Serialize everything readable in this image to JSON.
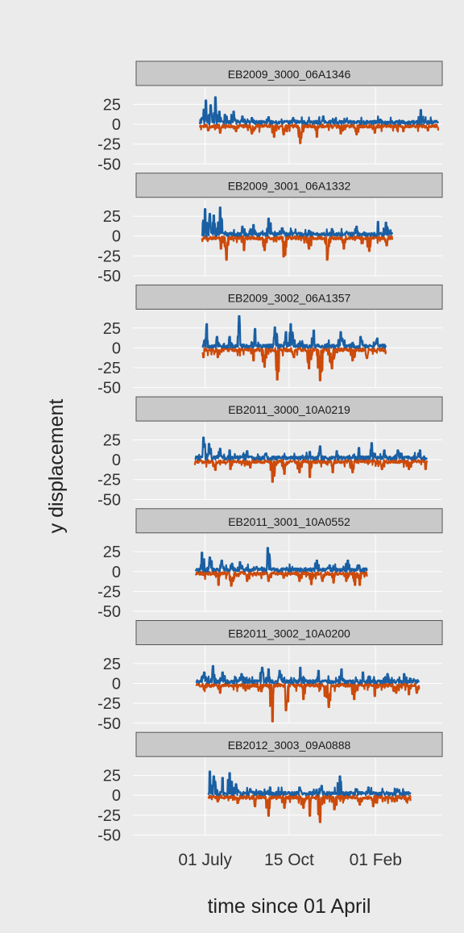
{
  "chart_data": {
    "type": "line",
    "xlabel": "time since 01 April",
    "ylabel": "y displacement",
    "x_ticks": [
      {
        "label": "01 July",
        "day": 91
      },
      {
        "label": "15 Oct",
        "day": 197
      },
      {
        "label": "01 Feb",
        "day": 306
      }
    ],
    "xlim": [
      0,
      390
    ],
    "ylim": [
      -50,
      40
    ],
    "y_ticks": [
      25,
      0,
      -25,
      -50
    ],
    "y_tick_labels": [
      "25",
      "0",
      "-25",
      "-50"
    ],
    "grid": true,
    "legend": "none",
    "colors": {
      "positive": "#1a5fa3",
      "negative": "#cc4a0a",
      "panel_bg": "#ebebeb",
      "strip_bg": "#c9c9c9",
      "grid": "#ffffff"
    },
    "panels": [
      {
        "title": "EB2009_3000_06A1346",
        "x_range": [
          84,
          385
        ],
        "positive_peaks": [
          [
            88,
            8
          ],
          [
            92,
            30
          ],
          [
            98,
            24
          ],
          [
            104,
            34
          ],
          [
            109,
            16
          ],
          [
            116,
            12
          ],
          [
            127,
            16
          ],
          [
            138,
            10
          ],
          [
            150,
            8
          ],
          [
            171,
            9
          ],
          [
            202,
            8
          ],
          [
            240,
            10
          ],
          [
            312,
            6
          ],
          [
            363,
            18
          ]
        ],
        "negative_peaks": [
          [
            95,
            -8
          ],
          [
            110,
            -11
          ],
          [
            130,
            -9
          ],
          [
            150,
            -12
          ],
          [
            178,
            -16
          ],
          [
            190,
            -13
          ],
          [
            211,
            -24
          ],
          [
            232,
            -16
          ],
          [
            262,
            -12
          ],
          [
            282,
            -13
          ],
          [
            305,
            -11
          ],
          [
            341,
            -9
          ],
          [
            372,
            -8
          ]
        ]
      },
      {
        "title": "EB2009_3001_06A1332",
        "x_range": [
          87,
          327
        ],
        "positive_peaks": [
          [
            91,
            34
          ],
          [
            97,
            28
          ],
          [
            102,
            26
          ],
          [
            110,
            36
          ],
          [
            138,
            12
          ],
          [
            152,
            14
          ],
          [
            171,
            22
          ],
          [
            188,
            10
          ],
          [
            222,
            7
          ],
          [
            251,
            9
          ],
          [
            282,
            12
          ],
          [
            309,
            18
          ],
          [
            319,
            17
          ]
        ],
        "negative_peaks": [
          [
            111,
            -16
          ],
          [
            118,
            -30
          ],
          [
            140,
            -18
          ],
          [
            166,
            -18
          ],
          [
            190,
            -26
          ],
          [
            192,
            -24
          ],
          [
            222,
            -16
          ],
          [
            245,
            -30
          ],
          [
            266,
            -16
          ],
          [
            298,
            -19
          ],
          [
            320,
            -12
          ]
        ]
      },
      {
        "title": "EB2009_3002_06A1357",
        "x_range": [
          88,
          319
        ],
        "positive_peaks": [
          [
            93,
            30
          ],
          [
            106,
            14
          ],
          [
            122,
            14
          ],
          [
            134,
            40
          ],
          [
            154,
            24
          ],
          [
            179,
            26
          ],
          [
            193,
            20
          ],
          [
            199,
            30
          ],
          [
            228,
            22
          ],
          [
            262,
            20
          ],
          [
            287,
            14
          ],
          [
            308,
            12
          ]
        ],
        "negative_peaks": [
          [
            89,
            -12
          ],
          [
            107,
            -12
          ],
          [
            152,
            -16
          ],
          [
            166,
            -24
          ],
          [
            182,
            -40
          ],
          [
            203,
            -12
          ],
          [
            222,
            -26
          ],
          [
            236,
            -41
          ],
          [
            251,
            -26
          ],
          [
            277,
            -16
          ],
          [
            295,
            -13
          ]
        ]
      },
      {
        "title": "EB2011_3000_10A0219",
        "x_range": [
          78,
          371
        ],
        "positive_peaks": [
          [
            89,
            28
          ],
          [
            96,
            20
          ],
          [
            110,
            14
          ],
          [
            122,
            12
          ],
          [
            144,
            11
          ],
          [
            168,
            8
          ],
          [
            223,
            10
          ],
          [
            236,
            17
          ],
          [
            257,
            11
          ],
          [
            285,
            15
          ],
          [
            301,
            21
          ],
          [
            317,
            12
          ],
          [
            334,
            12
          ],
          [
            362,
            12
          ]
        ],
        "negative_peaks": [
          [
            82,
            -4
          ],
          [
            104,
            -13
          ],
          [
            123,
            -12
          ],
          [
            148,
            -10
          ],
          [
            176,
            -28
          ],
          [
            191,
            -18
          ],
          [
            210,
            -16
          ],
          [
            223,
            -22
          ],
          [
            252,
            -16
          ],
          [
            277,
            -16
          ],
          [
            314,
            -12
          ],
          [
            348,
            -12
          ],
          [
            369,
            -12
          ]
        ]
      },
      {
        "title": "EB2011_3001_10A0552",
        "x_range": [
          79,
          295
        ],
        "positive_peaks": [
          [
            87,
            24
          ],
          [
            97,
            18
          ],
          [
            112,
            14
          ],
          [
            125,
            10
          ],
          [
            135,
            12
          ],
          [
            156,
            6
          ],
          [
            170,
            30
          ],
          [
            232,
            14
          ],
          [
            248,
            8
          ],
          [
            271,
            14
          ],
          [
            285,
            8
          ]
        ],
        "negative_peaks": [
          [
            108,
            -17
          ],
          [
            124,
            -18
          ],
          [
            144,
            -12
          ],
          [
            171,
            -12
          ],
          [
            190,
            -8
          ],
          [
            210,
            -12
          ],
          [
            225,
            -16
          ],
          [
            239,
            -12
          ],
          [
            253,
            -14
          ],
          [
            269,
            -12
          ],
          [
            280,
            -17
          ],
          [
            286,
            -17
          ]
        ]
      },
      {
        "title": "EB2011_3002_10A0200",
        "x_range": [
          80,
          361
        ],
        "positive_peaks": [
          [
            90,
            14
          ],
          [
            101,
            22
          ],
          [
            113,
            14
          ],
          [
            137,
            12
          ],
          [
            163,
            20
          ],
          [
            171,
            18
          ],
          [
            185,
            16
          ],
          [
            211,
            20
          ],
          [
            234,
            16
          ],
          [
            263,
            18
          ],
          [
            290,
            14
          ],
          [
            321,
            12
          ],
          [
            342,
            12
          ]
        ],
        "negative_peaks": [
          [
            85,
            -4
          ],
          [
            110,
            -12
          ],
          [
            142,
            -9
          ],
          [
            162,
            -10
          ],
          [
            176,
            -48
          ],
          [
            193,
            -34
          ],
          [
            215,
            -20
          ],
          [
            242,
            -16
          ],
          [
            247,
            -30
          ],
          [
            279,
            -20
          ],
          [
            305,
            -16
          ],
          [
            332,
            -12
          ],
          [
            348,
            -14
          ],
          [
            358,
            -12
          ]
        ]
      },
      {
        "title": "EB2012_3003_09A0888",
        "x_range": [
          95,
          350
        ],
        "positive_peaks": [
          [
            97,
            30
          ],
          [
            102,
            24
          ],
          [
            113,
            22
          ],
          [
            122,
            28
          ],
          [
            130,
            14
          ],
          [
            148,
            8
          ],
          [
            173,
            10
          ],
          [
            210,
            10
          ],
          [
            238,
            12
          ],
          [
            261,
            24
          ],
          [
            281,
            8
          ],
          [
            297,
            10
          ],
          [
            333,
            8
          ]
        ],
        "negative_peaks": [
          [
            107,
            -8
          ],
          [
            132,
            -10
          ],
          [
            154,
            -14
          ],
          [
            171,
            -26
          ],
          [
            191,
            -16
          ],
          [
            215,
            -16
          ],
          [
            223,
            -26
          ],
          [
            236,
            -34
          ],
          [
            254,
            -18
          ],
          [
            286,
            -12
          ],
          [
            303,
            -14
          ],
          [
            330,
            -8
          ],
          [
            345,
            -8
          ]
        ]
      }
    ]
  }
}
